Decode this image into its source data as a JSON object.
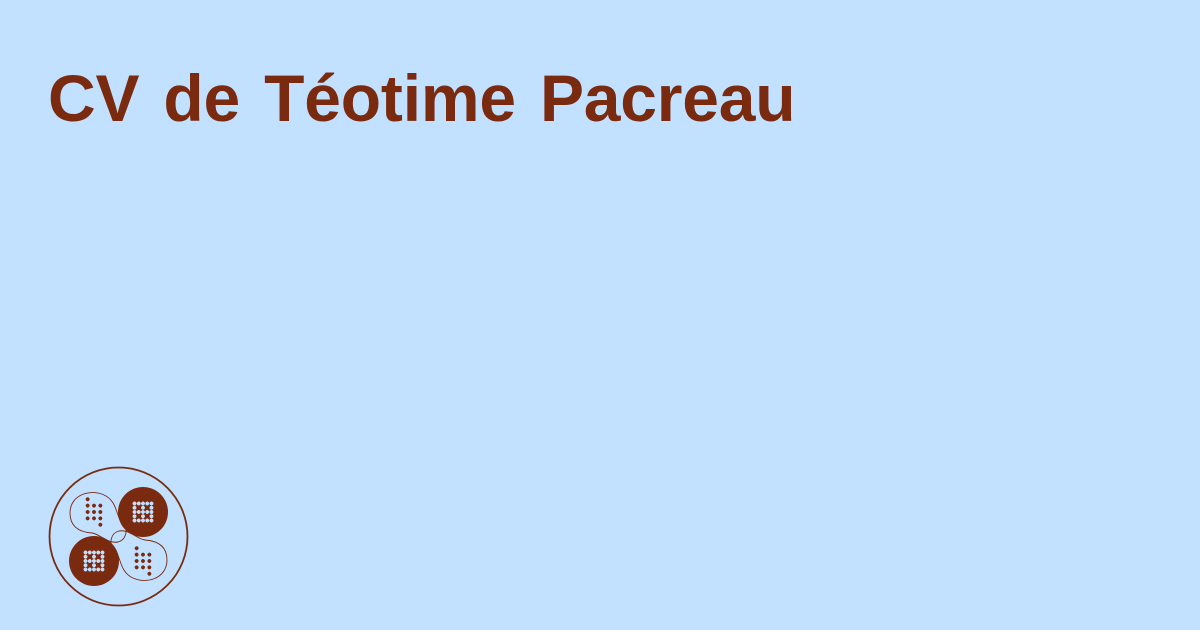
{
  "title": "CV de Téotime Pacreau",
  "colors": {
    "background": "#C2E0FF",
    "accent": "#7A2A0E"
  },
  "logo": {
    "icon": "dotted-circles-logo-icon"
  }
}
